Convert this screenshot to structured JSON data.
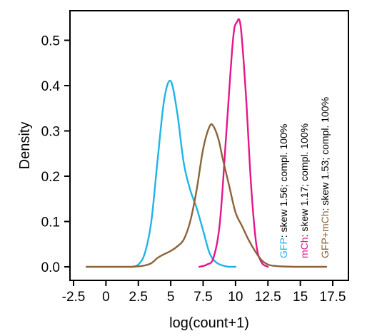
{
  "chart_data": {
    "type": "line",
    "xlabel": "log(count+1)",
    "ylabel": "Density",
    "xlim": [
      -2.5,
      17.5
    ],
    "ylim": [
      0.0,
      0.55
    ],
    "grid": false,
    "x_ticks": [
      "-2.5",
      "0",
      "2.5",
      "5",
      "7.5",
      "10",
      "12.5",
      "15",
      "17.5"
    ],
    "x_tick_values": [
      -2.5,
      0,
      2.5,
      5,
      7.5,
      10,
      12.5,
      15,
      17.5
    ],
    "y_ticks": [
      "0.0",
      "0.1",
      "0.2",
      "0.3",
      "0.4",
      "0.5"
    ],
    "y_tick_values": [
      0.0,
      0.1,
      0.2,
      0.3,
      0.4,
      0.5
    ],
    "series": [
      {
        "name": "GFP",
        "color": "#1fb4e8",
        "x": [
          2.0,
          2.5,
          3.0,
          3.5,
          4.0,
          4.5,
          5.0,
          5.5,
          6.0,
          6.5,
          7.0,
          7.5,
          8.0,
          8.5,
          9.0,
          9.5,
          10.0
        ],
        "y": [
          0.0,
          0.005,
          0.03,
          0.1,
          0.24,
          0.37,
          0.41,
          0.34,
          0.23,
          0.17,
          0.13,
          0.08,
          0.03,
          0.01,
          0.003,
          0.0,
          0.0
        ]
      },
      {
        "name": "mCh",
        "color": "#e5158c",
        "x": [
          7.2,
          7.8,
          8.3,
          8.8,
          9.3,
          9.8,
          10.1,
          10.4,
          10.8,
          11.2,
          11.6,
          12.0,
          12.5
        ],
        "y": [
          0.0,
          0.005,
          0.02,
          0.1,
          0.3,
          0.5,
          0.54,
          0.53,
          0.38,
          0.18,
          0.05,
          0.01,
          0.0
        ]
      },
      {
        "name": "GFP+mCh",
        "color": "#8c6239",
        "x": [
          -1.5,
          0,
          1.0,
          2.0,
          2.5,
          3.0,
          3.5,
          4.0,
          4.5,
          5.0,
          5.5,
          6.0,
          6.5,
          7.0,
          7.5,
          8.0,
          8.3,
          8.7,
          9.0,
          9.5,
          10.0,
          10.5,
          11.0,
          11.5,
          12.0,
          12.5,
          13.0,
          13.5,
          14.5,
          15.5,
          17.0
        ],
        "y": [
          0.0,
          0.0,
          0.0,
          0.0,
          0.001,
          0.003,
          0.008,
          0.02,
          0.028,
          0.035,
          0.045,
          0.06,
          0.1,
          0.17,
          0.26,
          0.31,
          0.31,
          0.28,
          0.24,
          0.18,
          0.12,
          0.09,
          0.06,
          0.035,
          0.015,
          0.005,
          0.002,
          0.001,
          0.0,
          0.0,
          0.0
        ]
      }
    ],
    "annotations": [
      {
        "label": "GFP",
        "text": ": skew 1.56; compl. 100%",
        "color": "#1fb4e8"
      },
      {
        "label": "mCh",
        "text": ": skew 1.17; compl. 100%",
        "color": "#e5158c"
      },
      {
        "label": "GFP+mCh",
        "text": ": skew 1.53; compl. 100%",
        "color": "#8c6239"
      }
    ]
  }
}
